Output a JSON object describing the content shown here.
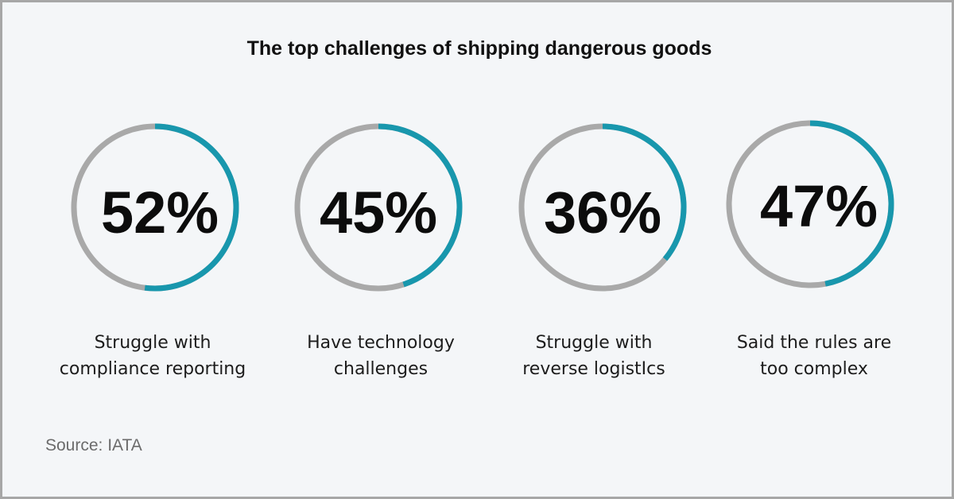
{
  "colors": {
    "track": "#a9a9a9",
    "fill": "#1897ad",
    "background": "#f4f6f8"
  },
  "chart_data": {
    "type": "donut",
    "title": "The top challenges of shipping dangerous goods",
    "source": "Source: IATA",
    "items": [
      {
        "value": 52,
        "display": "52%",
        "label_lines": [
          "Struggle with",
          "compliance reporting"
        ]
      },
      {
        "value": 45,
        "display": "45%",
        "label_lines": [
          "Have technology",
          "challenges"
        ]
      },
      {
        "value": 36,
        "display": "36%",
        "label_lines": [
          "Struggle with",
          "reverse logistIcs"
        ]
      },
      {
        "value": 47,
        "display": "47%",
        "label_lines": [
          "Said the rules are",
          "too complex"
        ]
      }
    ]
  }
}
